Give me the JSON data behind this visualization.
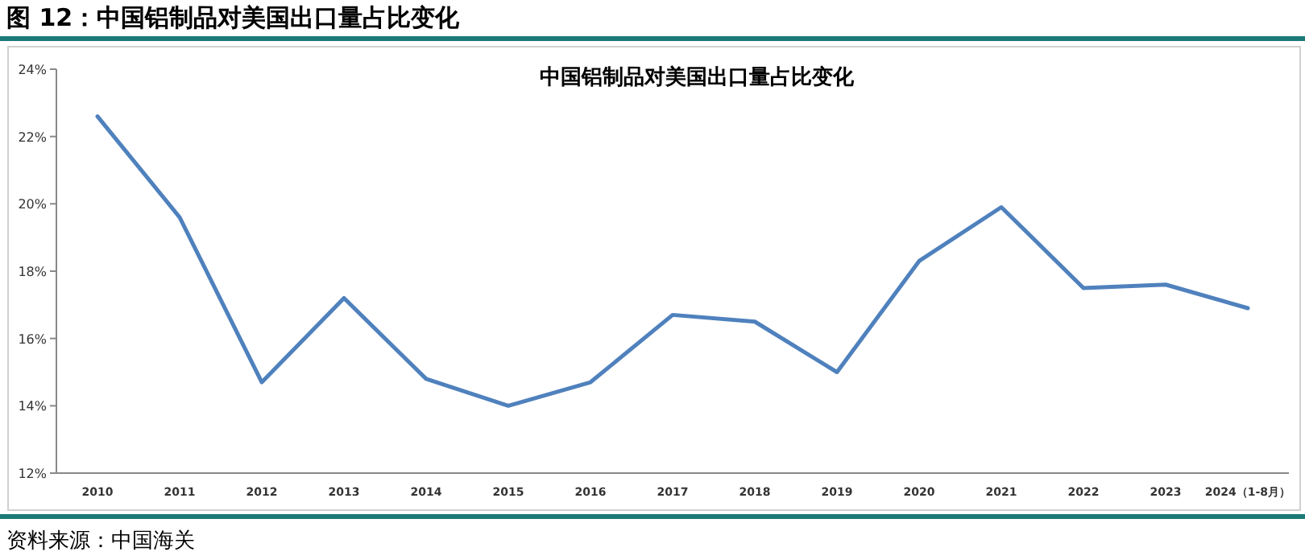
{
  "chart_data": {
    "type": "line",
    "title": "中国铝制品对美国出口量占比变化",
    "subtitle": "图 12：中国铝制品对美国出口量占比变化",
    "categories": [
      "2010",
      "2011",
      "2012",
      "2013",
      "2014",
      "2015",
      "2016",
      "2017",
      "2018",
      "2019",
      "2020",
      "2021",
      "2022",
      "2023",
      "2024（1-8月）"
    ],
    "series": [
      {
        "color": "#4f81bd",
        "values": [
          22.6,
          19.6,
          14.7,
          17.2,
          14.8,
          14.0,
          14.7,
          16.7,
          16.5,
          15.0,
          18.3,
          19.9,
          17.5,
          17.6,
          16.9
        ]
      }
    ],
    "ylim": [
      12,
      24
    ],
    "yticks": [
      {
        "value": 12,
        "label": "12%"
      },
      {
        "value": 14,
        "label": "14%"
      },
      {
        "value": 16,
        "label": "16%"
      },
      {
        "value": 18,
        "label": "18%"
      },
      {
        "value": 20,
        "label": "20%"
      },
      {
        "value": 22,
        "label": "22%"
      },
      {
        "value": 24,
        "label": "24%"
      }
    ],
    "grid": false,
    "marker": "none",
    "line_style": "solid",
    "annotations": [
      "资料来源：中国海关"
    ]
  }
}
